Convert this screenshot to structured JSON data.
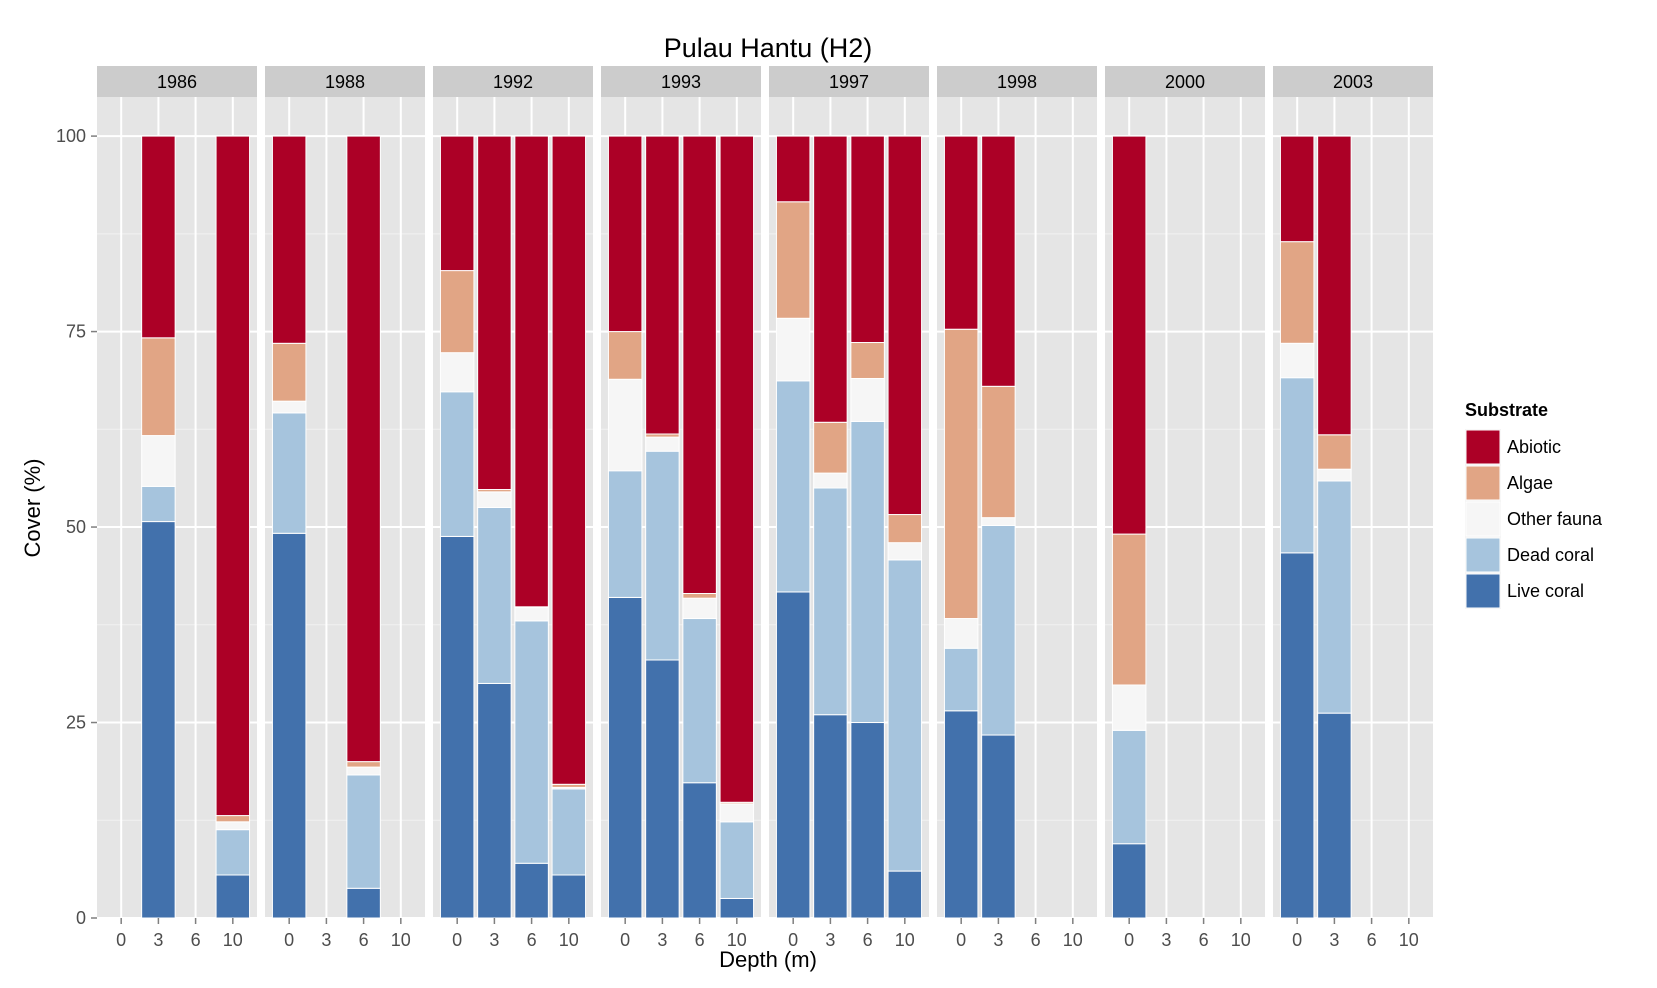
{
  "chart_data": {
    "type": "bar",
    "stacked": true,
    "faceted": true,
    "title": "Pulau Hantu (H2)",
    "xlabel": "Depth (m)",
    "ylabel": "Cover (%)",
    "ylim": [
      0,
      105
    ],
    "y_ticks": [
      "0",
      "25",
      "50",
      "75",
      "100"
    ],
    "x_ticks": [
      "0",
      "3",
      "6",
      "10"
    ],
    "grid": true,
    "legend_position": "right",
    "legend": {
      "title": "Substrate",
      "entries": [
        "Abiotic",
        "Algae",
        "Other fauna",
        "Dead coral",
        "Live coral"
      ]
    },
    "series_colors": {
      "Live coral": "#4271ac",
      "Dead coral": "#a6c4dd",
      "Other fauna": "#f6f6f6",
      "Algae": "#e1a585",
      "Abiotic": "#ac0026"
    },
    "stack_order": [
      "Live coral",
      "Dead coral",
      "Other fauna",
      "Algae",
      "Abiotic"
    ],
    "panels": [
      {
        "label": "1986",
        "bars": [
          {
            "depth": "3",
            "Live coral": 50.7,
            "Dead coral": 4.5,
            "Other fauna": 6.5,
            "Algae": 12.5,
            "Abiotic": 25.8
          },
          {
            "depth": "10",
            "Live coral": 5.5,
            "Dead coral": 5.8,
            "Other fauna": 1.0,
            "Algae": 0.8,
            "Abiotic": 86.9
          }
        ]
      },
      {
        "label": "1988",
        "bars": [
          {
            "depth": "0",
            "Live coral": 49.2,
            "Dead coral": 15.4,
            "Other fauna": 1.5,
            "Algae": 7.4,
            "Abiotic": 26.5
          },
          {
            "depth": "6",
            "Live coral": 3.8,
            "Dead coral": 14.5,
            "Other fauna": 1.0,
            "Algae": 0.7,
            "Abiotic": 80.0
          }
        ]
      },
      {
        "label": "1992",
        "bars": [
          {
            "depth": "0",
            "Live coral": 48.8,
            "Dead coral": 18.5,
            "Other fauna": 5.0,
            "Algae": 10.5,
            "Abiotic": 17.2
          },
          {
            "depth": "3",
            "Live coral": 30.0,
            "Dead coral": 22.5,
            "Other fauna": 2.0,
            "Algae": 0.3,
            "Abiotic": 45.2
          },
          {
            "depth": "6",
            "Live coral": 7.0,
            "Dead coral": 31.0,
            "Other fauna": 1.7,
            "Algae": 0.1,
            "Abiotic": 60.2
          },
          {
            "depth": "10",
            "Live coral": 5.5,
            "Dead coral": 11.0,
            "Other fauna": 0.2,
            "Algae": 0.4,
            "Abiotic": 82.9
          }
        ]
      },
      {
        "label": "1993",
        "bars": [
          {
            "depth": "0",
            "Live coral": 41.0,
            "Dead coral": 16.2,
            "Other fauna": 11.7,
            "Algae": 6.1,
            "Abiotic": 25.0
          },
          {
            "depth": "3",
            "Live coral": 33.0,
            "Dead coral": 26.7,
            "Other fauna": 1.8,
            "Algae": 0.4,
            "Abiotic": 38.1
          },
          {
            "depth": "6",
            "Live coral": 17.3,
            "Dead coral": 21.0,
            "Other fauna": 2.6,
            "Algae": 0.6,
            "Abiotic": 58.5
          },
          {
            "depth": "10",
            "Live coral": 2.5,
            "Dead coral": 9.8,
            "Other fauna": 2.3,
            "Algae": 0.2,
            "Abiotic": 85.2
          }
        ]
      },
      {
        "label": "1997",
        "bars": [
          {
            "depth": "0",
            "Live coral": 41.7,
            "Dead coral": 27.0,
            "Other fauna": 8.0,
            "Algae": 14.9,
            "Abiotic": 8.4
          },
          {
            "depth": "3",
            "Live coral": 26.0,
            "Dead coral": 29.0,
            "Other fauna": 1.9,
            "Algae": 6.5,
            "Abiotic": 36.6
          },
          {
            "depth": "6",
            "Live coral": 25.0,
            "Dead coral": 38.5,
            "Other fauna": 5.5,
            "Algae": 4.6,
            "Abiotic": 26.4
          },
          {
            "depth": "10",
            "Live coral": 6.0,
            "Dead coral": 39.8,
            "Other fauna": 2.2,
            "Algae": 3.6,
            "Abiotic": 48.4
          }
        ]
      },
      {
        "label": "1998",
        "bars": [
          {
            "depth": "0",
            "Live coral": 26.5,
            "Dead coral": 8.0,
            "Other fauna": 3.8,
            "Algae": 37.0,
            "Abiotic": 24.7
          },
          {
            "depth": "3",
            "Live coral": 23.4,
            "Dead coral": 26.8,
            "Other fauna": 1.0,
            "Algae": 16.8,
            "Abiotic": 32.0
          }
        ]
      },
      {
        "label": "2000",
        "bars": [
          {
            "depth": "0",
            "Live coral": 9.5,
            "Dead coral": 14.5,
            "Other fauna": 5.8,
            "Algae": 19.3,
            "Abiotic": 50.9
          }
        ]
      },
      {
        "label": "2003",
        "bars": [
          {
            "depth": "0",
            "Live coral": 46.7,
            "Dead coral": 22.4,
            "Other fauna": 4.4,
            "Algae": 13.0,
            "Abiotic": 13.5
          },
          {
            "depth": "3",
            "Live coral": 26.2,
            "Dead coral": 29.7,
            "Other fauna": 1.5,
            "Algae": 4.4,
            "Abiotic": 38.2
          }
        ]
      }
    ]
  }
}
